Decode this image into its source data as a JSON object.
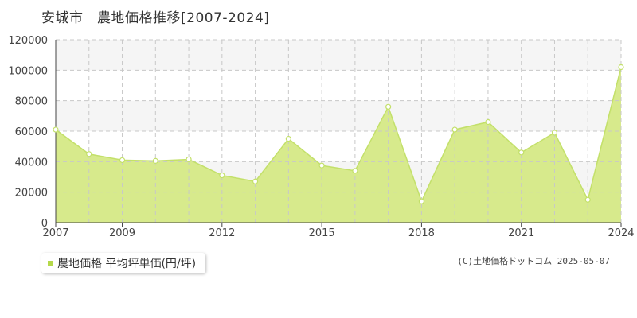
{
  "header": {
    "title": "安城市　農地価格推移[2007-2024]"
  },
  "legend": {
    "label": "農地価格 平均坪単価(円/坪)"
  },
  "footer": {
    "copyright": "(C)土地価格ドットコム 2025-05-07"
  },
  "colors": {
    "line": "#c3e06a",
    "fill": "#d7ea8c",
    "marker_fill": "#ffffff",
    "band": "#f5f5f5",
    "grid": "#c8c8c8",
    "axis": "#444444"
  },
  "chart_data": {
    "type": "area",
    "xlabel": "",
    "ylabel": "",
    "x": [
      2007,
      2008,
      2009,
      2010,
      2011,
      2012,
      2013,
      2014,
      2015,
      2016,
      2017,
      2018,
      2019,
      2020,
      2021,
      2022,
      2023,
      2024
    ],
    "values": [
      61000,
      45000,
      41000,
      40500,
      41500,
      31000,
      27000,
      55000,
      37500,
      34000,
      76000,
      14000,
      61000,
      66000,
      46000,
      59000,
      15000,
      102000
    ],
    "xlim": [
      2007,
      2024
    ],
    "ylim": [
      0,
      120000
    ],
    "x_tick_labels": [
      "2007",
      "2009",
      "2012",
      "2015",
      "2018",
      "2021",
      "2024"
    ],
    "y_tick_labels": [
      "0",
      "20000",
      "40000",
      "60000",
      "80000",
      "100000",
      "120000"
    ],
    "grid": true,
    "legend_position": "bottom-left"
  }
}
